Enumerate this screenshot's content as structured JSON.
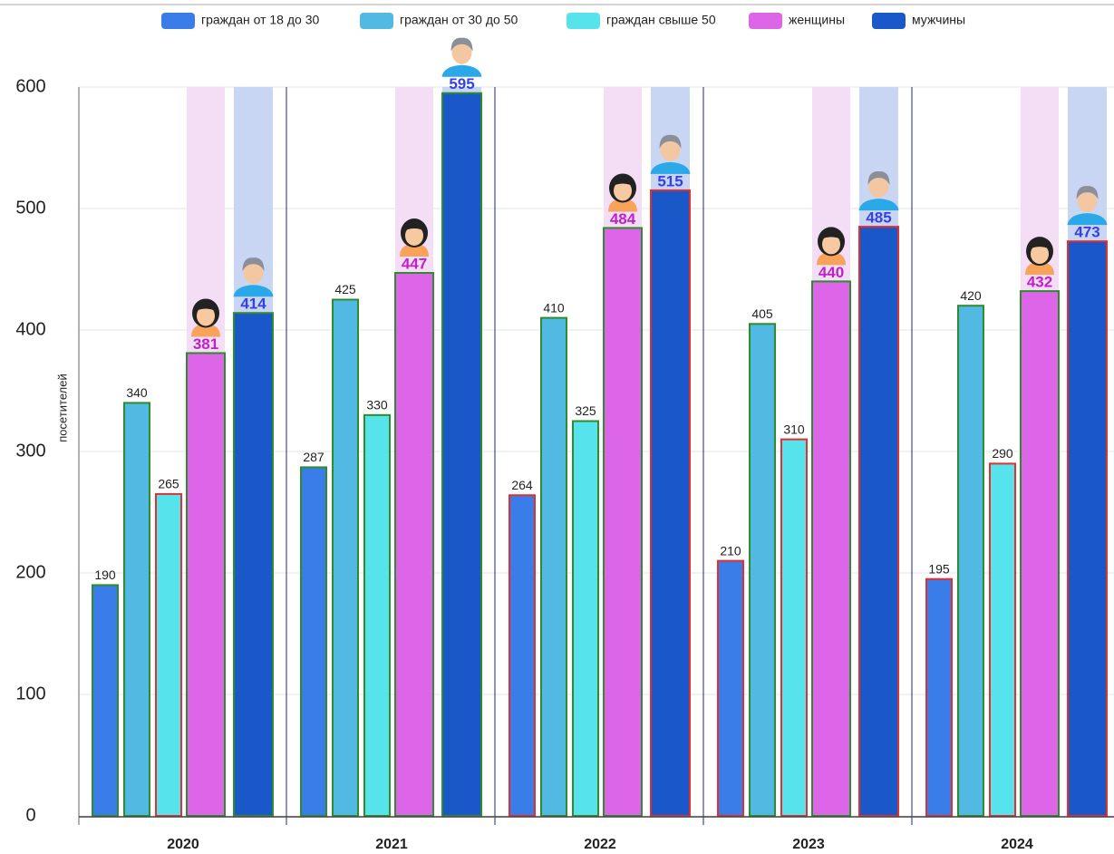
{
  "chart_data": {
    "type": "bar",
    "y_label": "посетителей",
    "categories": [
      "2020",
      "2021",
      "2022",
      "2023",
      "2024"
    ],
    "ylim": [
      0,
      600
    ],
    "yticks": [
      0,
      100,
      200,
      300,
      400,
      500,
      600
    ],
    "grid": true,
    "series": [
      {
        "name": "граждан от 18 до 30",
        "color": "#3b7de8",
        "values": [
          190,
          287,
          264,
          210,
          195
        ],
        "border_colors": [
          "#2e8b2e",
          "#2e8b2e",
          "#e03030",
          "#e03030",
          "#e03030"
        ]
      },
      {
        "name": "граждан от 30 до 50",
        "color": "#52b9e3",
        "values": [
          340,
          425,
          410,
          405,
          420
        ],
        "border_colors": [
          "#2e8b2e",
          "#2e8b2e",
          "#2e8b2e",
          "#2e8b2e",
          "#2e8b2e"
        ]
      },
      {
        "name": "граждан свыше 50",
        "color": "#57e3ec",
        "values": [
          265,
          330,
          325,
          310,
          290
        ],
        "border_colors": [
          "#e03030",
          "#2e8b2e",
          "#2e8b2e",
          "#e03030",
          "#e03030"
        ]
      },
      {
        "name": "женщины",
        "color": "#dd66e8",
        "values": [
          381,
          447,
          484,
          440,
          432
        ],
        "border_colors": [
          "#2e8b2e",
          "#2e8b2e",
          "#2e8b2e",
          "#2e8b2e",
          "#2e8b2e"
        ]
      },
      {
        "name": "мужчины",
        "color": "#1a57c9",
        "values": [
          414,
          595,
          515,
          485,
          473
        ],
        "border_colors": [
          "#2e8b2e",
          "#2e8b2e",
          "#e03030",
          "#e03030",
          "#e03030"
        ]
      }
    ]
  }
}
